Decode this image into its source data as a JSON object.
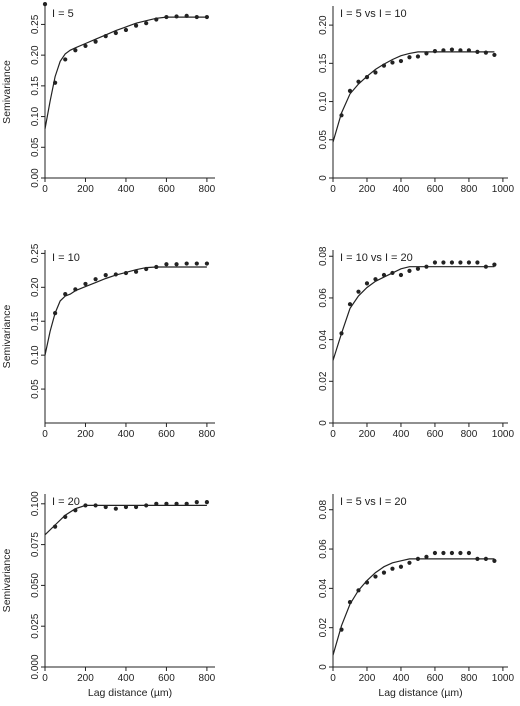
{
  "colors": {
    "ink": "#222222",
    "background": "#ffffff"
  },
  "axis_labels": {
    "y": "Semivariance",
    "x": "Lag distance (µm)"
  },
  "chart_data": [
    {
      "type": "scatter",
      "panel": "I = 5",
      "ylabel": "Semivariance",
      "xlabel": "",
      "xlim": [
        0,
        840
      ],
      "ylim": [
        0,
        0.28
      ],
      "xticks": [
        0,
        200,
        400,
        600,
        800
      ],
      "yticks": [
        0,
        0.05,
        0.1,
        0.15,
        0.2,
        0.25
      ],
      "ytick_labels": [
        "0.00",
        "0.05",
        "0.10",
        "0.15",
        "0.20",
        "0.25"
      ],
      "points": {
        "x": [
          0,
          50,
          100,
          150,
          200,
          250,
          300,
          350,
          400,
          450,
          500,
          550,
          600,
          650,
          700,
          750,
          800
        ],
        "y": [
          0.283,
          0.155,
          0.193,
          0.208,
          0.215,
          0.222,
          0.231,
          0.236,
          0.241,
          0.248,
          0.252,
          0.258,
          0.262,
          0.263,
          0.264,
          0.262,
          0.262
        ]
      },
      "fit": {
        "x": [
          0,
          25,
          50,
          75,
          100,
          125,
          150,
          200,
          250,
          300,
          350,
          400,
          450,
          500,
          550,
          600,
          650,
          700,
          750,
          800
        ],
        "y": [
          0.08,
          0.125,
          0.165,
          0.19,
          0.202,
          0.208,
          0.212,
          0.219,
          0.226,
          0.233,
          0.24,
          0.246,
          0.252,
          0.256,
          0.26,
          0.262,
          0.262,
          0.262,
          0.262,
          0.262
        ]
      }
    },
    {
      "type": "scatter",
      "panel": "I = 5 vs I = 10",
      "ylabel": "",
      "xlabel": "",
      "xlim": [
        0,
        1030
      ],
      "ylim": [
        0,
        0.225
      ],
      "xticks": [
        0,
        200,
        400,
        600,
        800,
        1000
      ],
      "yticks": [
        0,
        0.05,
        0.1,
        0.15,
        0.2
      ],
      "ytick_labels": [
        "0",
        "0.05",
        "0.10",
        "0.15",
        "0.20"
      ],
      "points": {
        "x": [
          50,
          100,
          150,
          200,
          250,
          300,
          350,
          400,
          450,
          500,
          550,
          600,
          650,
          700,
          750,
          800,
          850,
          900,
          950
        ],
        "y": [
          0.082,
          0.114,
          0.126,
          0.132,
          0.138,
          0.147,
          0.151,
          0.153,
          0.158,
          0.159,
          0.163,
          0.166,
          0.167,
          0.168,
          0.167,
          0.167,
          0.165,
          0.164,
          0.161
        ]
      },
      "fit": {
        "x": [
          0,
          50,
          100,
          150,
          200,
          250,
          300,
          350,
          400,
          450,
          500,
          550,
          600,
          650,
          700,
          800,
          900,
          950
        ],
        "y": [
          0.047,
          0.085,
          0.11,
          0.123,
          0.133,
          0.142,
          0.149,
          0.155,
          0.16,
          0.163,
          0.165,
          0.165,
          0.165,
          0.165,
          0.165,
          0.165,
          0.165,
          0.165
        ]
      }
    },
    {
      "type": "scatter",
      "panel": "I = 10",
      "ylabel": "Semivariance",
      "xlabel": "",
      "xlim": [
        0,
        840
      ],
      "ylim": [
        0,
        0.255
      ],
      "xticks": [
        0,
        200,
        400,
        600,
        800
      ],
      "yticks": [
        0.05,
        0.1,
        0.15,
        0.2,
        0.25
      ],
      "ytick_labels": [
        "0.05",
        "0.10",
        "0.15",
        "0.20",
        "0.25"
      ],
      "points": {
        "x": [
          50,
          100,
          150,
          200,
          250,
          300,
          350,
          400,
          450,
          500,
          550,
          600,
          650,
          700,
          750,
          800
        ],
        "y": [
          0.162,
          0.19,
          0.197,
          0.205,
          0.212,
          0.218,
          0.219,
          0.221,
          0.223,
          0.227,
          0.23,
          0.234,
          0.234,
          0.235,
          0.235,
          0.235
        ]
      },
      "fit": {
        "x": [
          0,
          25,
          50,
          75,
          100,
          125,
          150,
          200,
          250,
          300,
          350,
          400,
          450,
          500,
          550,
          600,
          700,
          800
        ],
        "y": [
          0.1,
          0.135,
          0.162,
          0.18,
          0.187,
          0.19,
          0.195,
          0.201,
          0.207,
          0.213,
          0.218,
          0.222,
          0.226,
          0.229,
          0.23,
          0.23,
          0.23,
          0.23
        ]
      }
    },
    {
      "type": "scatter",
      "panel": "I = 10 vs I = 20",
      "ylabel": "",
      "xlabel": "",
      "xlim": [
        0,
        1030
      ],
      "ylim": [
        0,
        0.083
      ],
      "xticks": [
        0,
        200,
        400,
        600,
        800,
        1000
      ],
      "yticks": [
        0,
        0.02,
        0.04,
        0.06,
        0.08
      ],
      "ytick_labels": [
        "0",
        "0.02",
        "0.04",
        "0.06",
        "0.08"
      ],
      "points": {
        "x": [
          50,
          100,
          150,
          200,
          250,
          300,
          350,
          400,
          450,
          500,
          550,
          600,
          650,
          700,
          750,
          800,
          850,
          900,
          950
        ],
        "y": [
          0.043,
          0.057,
          0.063,
          0.067,
          0.069,
          0.071,
          0.072,
          0.071,
          0.073,
          0.074,
          0.075,
          0.077,
          0.077,
          0.077,
          0.077,
          0.077,
          0.077,
          0.075,
          0.076
        ]
      },
      "fit": {
        "x": [
          0,
          50,
          100,
          150,
          200,
          250,
          300,
          350,
          400,
          450,
          500,
          550,
          600,
          700,
          800,
          900,
          950
        ],
        "y": [
          0.03,
          0.043,
          0.055,
          0.061,
          0.065,
          0.068,
          0.07,
          0.072,
          0.074,
          0.075,
          0.075,
          0.075,
          0.075,
          0.075,
          0.075,
          0.075,
          0.075
        ]
      }
    },
    {
      "type": "scatter",
      "panel": "I = 20",
      "ylabel": "Semivariance",
      "xlabel": "Lag distance (µm)",
      "xlim": [
        0,
        840
      ],
      "ylim": [
        0,
        0.106
      ],
      "xticks": [
        0,
        200,
        400,
        600,
        800
      ],
      "yticks": [
        0,
        0.025,
        0.05,
        0.075,
        0.1
      ],
      "ytick_labels": [
        "0.000",
        "0.025",
        "0.050",
        "0.075",
        "0.100"
      ],
      "points": {
        "x": [
          50,
          100,
          150,
          200,
          250,
          300,
          350,
          400,
          450,
          500,
          550,
          600,
          650,
          700,
          750,
          800
        ],
        "y": [
          0.086,
          0.092,
          0.096,
          0.099,
          0.099,
          0.098,
          0.097,
          0.098,
          0.098,
          0.099,
          0.1,
          0.1,
          0.1,
          0.1,
          0.101,
          0.101
        ]
      },
      "fit": {
        "x": [
          0,
          50,
          100,
          150,
          200,
          250,
          300,
          400,
          500,
          600,
          700,
          800
        ],
        "y": [
          0.081,
          0.087,
          0.093,
          0.097,
          0.099,
          0.099,
          0.099,
          0.099,
          0.099,
          0.099,
          0.099,
          0.099
        ]
      }
    },
    {
      "type": "scatter",
      "panel": "I = 5 vs I = 20",
      "ylabel": "",
      "xlabel": "Lag distance (µm)",
      "xlim": [
        0,
        1030
      ],
      "ylim": [
        0,
        0.088
      ],
      "xticks": [
        0,
        200,
        400,
        600,
        800,
        1000
      ],
      "yticks": [
        0,
        0.02,
        0.04,
        0.06,
        0.08
      ],
      "ytick_labels": [
        "0",
        "0.02",
        "0.04",
        "0.06",
        "0.08"
      ],
      "points": {
        "x": [
          50,
          100,
          150,
          200,
          250,
          300,
          350,
          400,
          450,
          500,
          550,
          600,
          650,
          700,
          750,
          800,
          850,
          900,
          950
        ],
        "y": [
          0.019,
          0.033,
          0.039,
          0.043,
          0.046,
          0.048,
          0.05,
          0.051,
          0.053,
          0.055,
          0.056,
          0.058,
          0.058,
          0.058,
          0.058,
          0.058,
          0.055,
          0.055,
          0.054
        ]
      },
      "fit": {
        "x": [
          0,
          50,
          100,
          150,
          200,
          250,
          300,
          350,
          400,
          450,
          500,
          550,
          600,
          700,
          800,
          900,
          950
        ],
        "y": [
          0.006,
          0.021,
          0.032,
          0.039,
          0.044,
          0.048,
          0.051,
          0.053,
          0.054,
          0.055,
          0.055,
          0.055,
          0.055,
          0.055,
          0.055,
          0.055,
          0.055
        ]
      }
    }
  ]
}
